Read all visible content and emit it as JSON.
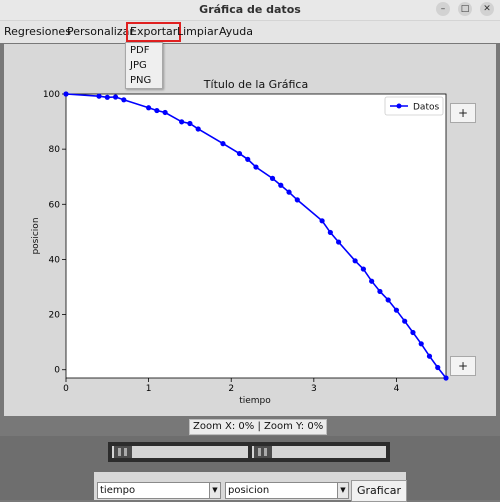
{
  "window": {
    "title": "Gráfica de datos",
    "controls": {
      "minimize": "–",
      "maximize": "□",
      "close": "✕"
    }
  },
  "menu": {
    "items": [
      "Regresiones",
      "Personalizar",
      "Exportar",
      "Limpiar",
      "Ayuda"
    ],
    "active": "Exportar",
    "export_options": [
      "PDF",
      "JPG",
      "PNG"
    ]
  },
  "side_buttons": {
    "top": "+",
    "bottom": "+"
  },
  "chart_data": {
    "type": "line",
    "title": "Título de la Gráfica",
    "xlabel": "tiempo",
    "ylabel": "posicion",
    "xlim": [
      0,
      4.6
    ],
    "ylim": [
      -3,
      100
    ],
    "xticks": [
      0,
      1,
      2,
      3,
      4
    ],
    "yticks": [
      0,
      20,
      40,
      60,
      80,
      100
    ],
    "legend_position": "top-right",
    "series": [
      {
        "name": "Datos",
        "color": "#0000ff",
        "marker": "circle",
        "x": [
          0,
          0.4,
          0.5,
          0.6,
          0.7,
          1.0,
          1.1,
          1.2,
          1.4,
          1.5,
          1.6,
          1.9,
          2.1,
          2.2,
          2.3,
          2.5,
          2.6,
          2.7,
          2.8,
          3.1,
          3.2,
          3.3,
          3.5,
          3.6,
          3.7,
          3.8,
          3.9,
          4.0,
          4.1,
          4.2,
          4.3,
          4.4,
          4.5,
          4.6
        ],
        "y": [
          100,
          99.2,
          98.8,
          98.9,
          97.9,
          95,
          94,
          93.3,
          89.9,
          89.3,
          87.3,
          82,
          78.4,
          76.3,
          73.5,
          69.4,
          66.9,
          64.4,
          61.6,
          54,
          49.8,
          46.3,
          39.5,
          36.5,
          32.1,
          28.4,
          25.3,
          21.6,
          17.6,
          13.5,
          9.4,
          4.9,
          0.8,
          -3
        ]
      }
    ]
  },
  "status": {
    "zoom": "Zoom X: 0% | Zoom Y: 0%"
  },
  "controls": {
    "x_select": "tiempo",
    "y_select": "posicion",
    "graph_button": "Graficar"
  }
}
